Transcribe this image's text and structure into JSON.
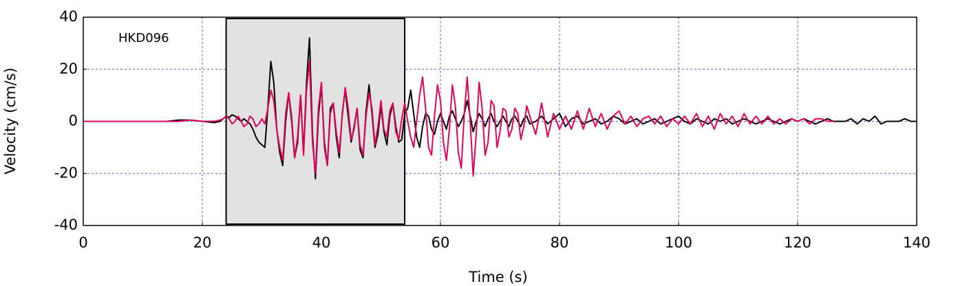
{
  "chart_data": {
    "type": "line",
    "annotation": "HKD096",
    "xlabel": "Time (s)",
    "ylabel": "Velocity (cm/s)",
    "xlim": [
      0,
      140
    ],
    "xticks": [
      0,
      20,
      40,
      60,
      80,
      100,
      120,
      140
    ],
    "ylim": [
      -40,
      40
    ],
    "yticks": [
      -40,
      -20,
      0,
      20,
      40
    ],
    "grid": true,
    "window": {
      "xlim": [
        24,
        54
      ],
      "color": "#e2e2e2"
    },
    "x": [
      0,
      2,
      4,
      6,
      8,
      10,
      12,
      14,
      16,
      18,
      20,
      22,
      23,
      23.5,
      24,
      24.5,
      25,
      25.5,
      26,
      26.5,
      27,
      27.5,
      28,
      28.5,
      29,
      29.5,
      30,
      30.5,
      31,
      31.5,
      32,
      32.5,
      33,
      33.5,
      34,
      34.5,
      35,
      35.5,
      36,
      36.5,
      37,
      37.5,
      38,
      38.5,
      39,
      39.5,
      40,
      40.5,
      41,
      41.5,
      42,
      42.5,
      43,
      43.5,
      44,
      44.5,
      45,
      45.5,
      46,
      46.5,
      47,
      47.5,
      48,
      48.5,
      49,
      49.5,
      50,
      50.5,
      51,
      51.5,
      52,
      52.5,
      53,
      53.5,
      54,
      54.5,
      55,
      55.5,
      56,
      56.5,
      57,
      57.5,
      58,
      58.5,
      59,
      59.5,
      60,
      60.5,
      61,
      61.5,
      62,
      62.5,
      63,
      63.5,
      64,
      64.5,
      65,
      65.5,
      66,
      66.5,
      67,
      67.5,
      68,
      68.5,
      69,
      69.5,
      70,
      70.5,
      71,
      71.5,
      72,
      72.5,
      73,
      73.5,
      74,
      74.5,
      75,
      76,
      77,
      78,
      79,
      80,
      81,
      82,
      83,
      84,
      85,
      86,
      87,
      88,
      89,
      90,
      91,
      92,
      93,
      94,
      95,
      96,
      97,
      98,
      99,
      100,
      101,
      102,
      103,
      104,
      105,
      106,
      107,
      108,
      109,
      110,
      111,
      112,
      113,
      114,
      115,
      116,
      117,
      118,
      119,
      120,
      121,
      122,
      123,
      124,
      125,
      126,
      127,
      128,
      129,
      130,
      131,
      132,
      133,
      134,
      135,
      136,
      137,
      138,
      139,
      140
    ],
    "series": [
      {
        "color": "#000000",
        "values": [
          0,
          0,
          0,
          0,
          0,
          0,
          0,
          0,
          0.5,
          0.5,
          0,
          -0.5,
          0,
          1,
          2,
          1.5,
          2.5,
          2,
          1,
          0,
          1,
          0,
          -1,
          -3,
          -6,
          -8,
          -9,
          -10,
          5,
          23,
          15,
          -3,
          -12,
          -17,
          0,
          11,
          0,
          -14,
          -8,
          10,
          -12,
          15,
          32,
          -5,
          -22,
          2,
          14,
          -8,
          -17,
          5,
          7,
          -6,
          -14,
          3,
          12,
          2,
          -8,
          -2,
          5,
          -11,
          -14,
          4,
          14,
          3,
          -10,
          -5,
          6,
          -4,
          -9,
          2,
          7,
          -2,
          -8,
          -7,
          3,
          5,
          12,
          3,
          -6,
          -10,
          -2,
          3,
          2,
          -3,
          -5,
          0,
          3,
          0,
          -3,
          2,
          4,
          1,
          -2,
          0,
          3,
          8,
          2,
          -4,
          0,
          3,
          1,
          -2,
          1,
          3,
          0,
          -2,
          0,
          2,
          0,
          -2,
          1,
          2,
          0,
          -2,
          1,
          2,
          -1,
          0,
          2,
          -1,
          1,
          3,
          -2,
          1,
          2,
          -1,
          0,
          1,
          -1,
          0,
          2,
          1,
          -1,
          0,
          1,
          -1,
          0,
          1,
          -1,
          0,
          1,
          2,
          0,
          -1,
          1,
          0,
          -1,
          1,
          0,
          1,
          -1,
          0,
          1,
          0,
          -1,
          0,
          1,
          0,
          -1,
          0,
          1,
          0,
          1,
          0,
          -1,
          0,
          1,
          0,
          0,
          0,
          1,
          -1,
          1,
          0,
          2,
          -1,
          0,
          0,
          0,
          1,
          0,
          0
        ]
      },
      {
        "color": "#e6005c",
        "values": [
          0,
          0,
          0,
          0,
          0,
          0,
          0,
          0,
          0,
          0.5,
          0,
          0,
          0.5,
          1,
          2,
          1,
          -1,
          0,
          2,
          0,
          -2,
          -1,
          2,
          1,
          -2,
          -1,
          1,
          -1,
          5,
          12,
          8,
          -3,
          -10,
          -15,
          3,
          11,
          2,
          -14,
          -6,
          10,
          -13,
          12,
          23,
          -8,
          -20,
          5,
          15,
          -10,
          -17,
          3,
          7,
          -4,
          -12,
          2,
          13,
          5,
          -7,
          -3,
          5,
          -9,
          -13,
          2,
          11,
          5,
          -9,
          -2,
          8,
          -3,
          -6,
          4,
          7,
          -4,
          -7,
          1,
          7,
          0,
          -6,
          -10,
          0,
          10,
          17,
          5,
          -10,
          -13,
          2,
          14,
          8,
          -8,
          -15,
          -3,
          14,
          6,
          -12,
          -18,
          3,
          17,
          0,
          -21,
          -5,
          15,
          5,
          -13,
          -8,
          8,
          6,
          -10,
          -4,
          5,
          4,
          -6,
          -3,
          5,
          3,
          -7,
          -2,
          6,
          2,
          -5,
          7,
          -6,
          3,
          -3,
          2,
          -3,
          4,
          -3,
          5,
          -2,
          3,
          -3,
          2,
          4,
          -1,
          2,
          -2,
          1,
          2,
          -1,
          2,
          -2,
          1,
          -1,
          2,
          -1,
          3,
          -2,
          2,
          -3,
          3,
          -1,
          2,
          -2,
          3,
          -1,
          2,
          -1,
          2,
          -1,
          1,
          -1,
          1,
          0,
          1,
          -1,
          1,
          1,
          0,
          0,
          null,
          null,
          null,
          null,
          null,
          null,
          null,
          null,
          null,
          null,
          null,
          null,
          null,
          null
        ]
      }
    ]
  }
}
